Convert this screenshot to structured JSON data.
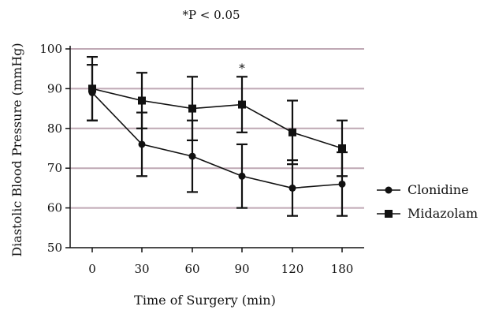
{
  "chart_data": {
    "type": "line",
    "title": "*P < 0.05",
    "xlabel": "Time of Surgery (min)",
    "ylabel": "Diastolic Blood Pressure (mmHg)",
    "categories": [
      "0",
      "30",
      "60",
      "90",
      "120",
      "180"
    ],
    "ylim": [
      50,
      100
    ],
    "yticks": [
      "50",
      "60",
      "70",
      "80",
      "90",
      "100"
    ],
    "grid": true,
    "legend_position": "right",
    "significance_marker": {
      "label": "*",
      "category": "90"
    },
    "series": [
      {
        "name": "Clonidine",
        "marker": "circle",
        "values": [
          89,
          76,
          73,
          68,
          65,
          66
        ],
        "errors": [
          7,
          8,
          9,
          8,
          7,
          8
        ]
      },
      {
        "name": "Midazolam",
        "marker": "square",
        "values": [
          90,
          87,
          85,
          86,
          79,
          75
        ],
        "errors": [
          8,
          7,
          8,
          7,
          8,
          7
        ]
      }
    ],
    "colors": {
      "grid": "#bfa8b4",
      "line": "#111111"
    }
  }
}
